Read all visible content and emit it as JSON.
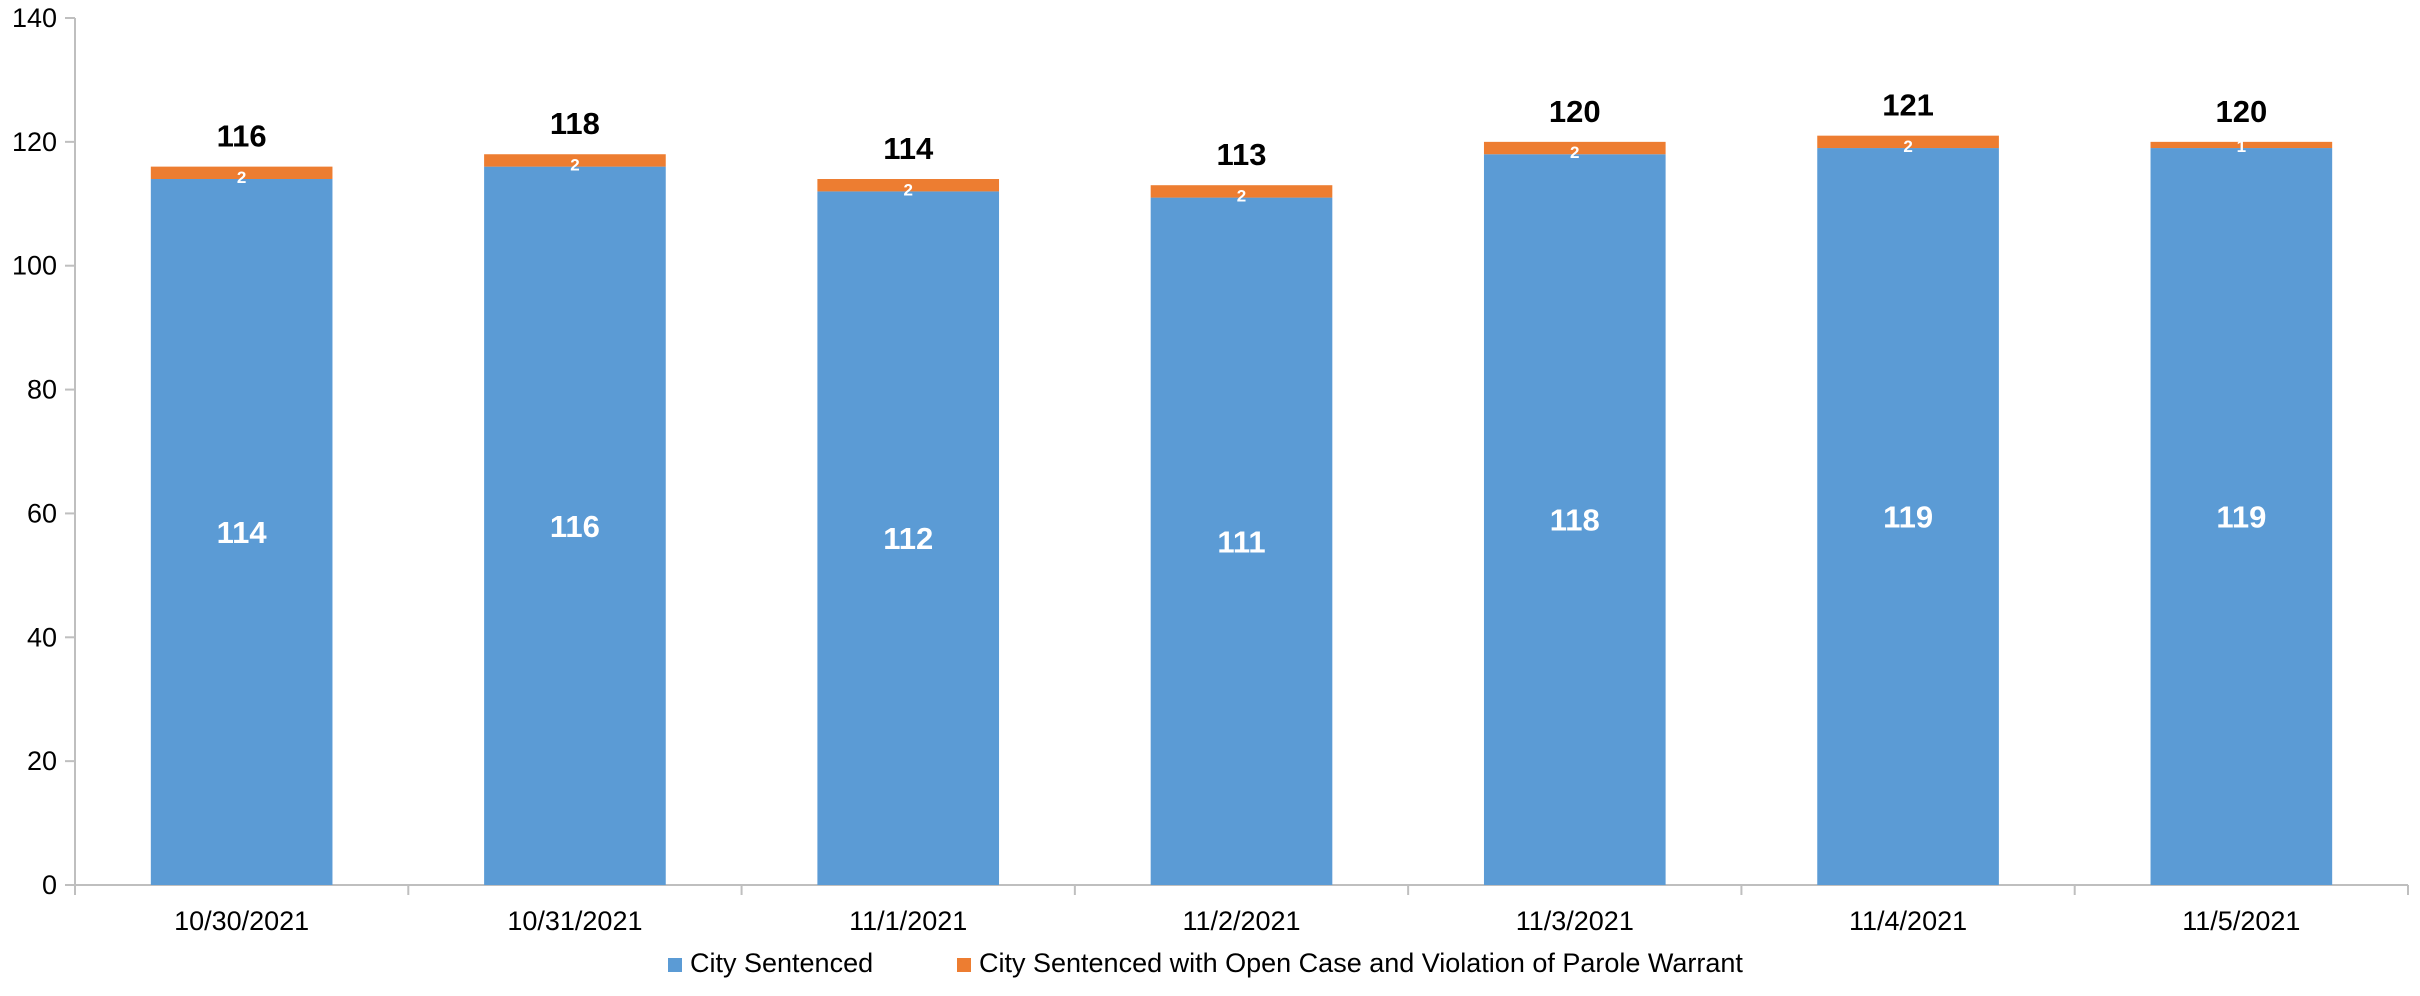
{
  "chart_data": {
    "type": "bar",
    "stacked": true,
    "categories": [
      "10/30/2021",
      "10/31/2021",
      "11/1/2021",
      "11/2/2021",
      "11/3/2021",
      "11/4/2021",
      "11/5/2021"
    ],
    "series": [
      {
        "name": "City Sentenced",
        "color": "#5B9BD5",
        "values": [
          114,
          116,
          112,
          111,
          118,
          119,
          119
        ]
      },
      {
        "name": "City Sentenced with Open Case and Violation of Parole Warrant",
        "color": "#ED7D31",
        "values": [
          2,
          2,
          2,
          2,
          2,
          2,
          1
        ]
      }
    ],
    "totals": [
      116,
      118,
      114,
      113,
      120,
      121,
      120
    ],
    "ylim": [
      0,
      140
    ],
    "yticks": [
      0,
      20,
      40,
      60,
      80,
      100,
      120,
      140
    ],
    "title": "",
    "xlabel": "",
    "ylabel": "",
    "grid": false,
    "legend_position": "bottom"
  }
}
